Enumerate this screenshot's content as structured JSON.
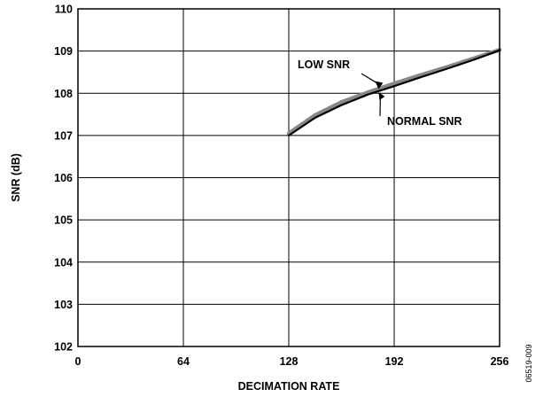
{
  "chart_data": {
    "type": "line",
    "xlabel": "DECIMATION RATE",
    "ylabel": "SNR (dB)",
    "xlim": [
      0,
      256
    ],
    "ylim": [
      102,
      110
    ],
    "xticks": [
      0,
      64,
      128,
      192,
      256
    ],
    "yticks": [
      102,
      103,
      104,
      105,
      106,
      107,
      108,
      109,
      110
    ],
    "xtick_labels": [
      "0",
      "64",
      "128",
      "192",
      "256"
    ],
    "ytick_labels": [
      "102",
      "103",
      "104",
      "105",
      "106",
      "107",
      "108",
      "109",
      "110"
    ],
    "grid": true,
    "series": [
      {
        "name": "LOW SNR",
        "color": "#888888",
        "x": [
          128,
          144,
          160,
          176,
          192,
          208,
          224,
          240,
          256
        ],
        "y": [
          107.05,
          107.48,
          107.79,
          108.02,
          108.23,
          108.43,
          108.62,
          108.82,
          109.03
        ]
      },
      {
        "name": "NORMAL SNR",
        "color": "#000000",
        "x": [
          128,
          144,
          160,
          176,
          192,
          208,
          224,
          240,
          256
        ],
        "y": [
          107.0,
          107.42,
          107.72,
          107.97,
          108.17,
          108.38,
          108.58,
          108.79,
          109.02
        ]
      }
    ],
    "annotations": [
      {
        "text": "LOW SNR",
        "points_to_series": "LOW SNR",
        "x": 182,
        "y": 108.08
      },
      {
        "text": "NORMAL SNR",
        "points_to_series": "NORMAL SNR",
        "x": 182,
        "y": 108.05
      }
    ],
    "side_label": "06519-009"
  }
}
